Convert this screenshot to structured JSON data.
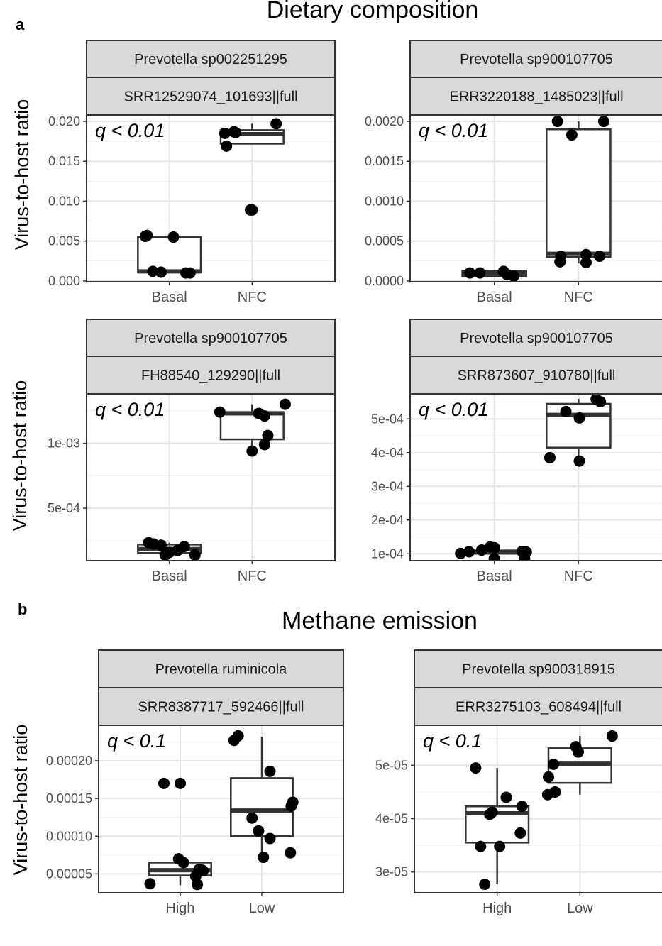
{
  "figure": {
    "section_a_letter": "a",
    "section_a_title": "Dietary composition",
    "section_b_letter": "b",
    "section_b_title": "Methane emission",
    "y_label": "Virus-to-host ratio"
  },
  "chart_data": [
    {
      "type": "box",
      "id": "p1",
      "strip1": "Prevotella sp002251295",
      "strip2": "SRR12529074_101693||full",
      "annotation": "q < 0.01",
      "categories": [
        "Basal",
        "NFC"
      ],
      "ylim": [
        -0.0001,
        0.0208
      ],
      "yticks": [
        0.0,
        0.005,
        0.01,
        0.015,
        0.02
      ],
      "yticklabels": [
        "0.000",
        "0.005",
        "0.010",
        "0.015",
        "0.020"
      ],
      "grid": true,
      "boxes": [
        {
          "q1": 0.0011,
          "median": 0.0012,
          "q3": 0.0055,
          "whisker_low": 0.001,
          "whisker_high": 0.0057
        },
        {
          "q1": 0.0172,
          "median": 0.0184,
          "q3": 0.0189,
          "whisker_low": 0.0172,
          "whisker_high": 0.0197
        }
      ],
      "points": [
        {
          "group": 0,
          "dx": -0.29,
          "y": 0.0056
        },
        {
          "group": 0,
          "dx": -0.27,
          "y": 0.0057
        },
        {
          "group": 0,
          "dx": -0.2,
          "y": 0.0012
        },
        {
          "group": 0,
          "dx": -0.1,
          "y": 0.0011
        },
        {
          "group": 0,
          "dx": 0.05,
          "y": 0.0055
        },
        {
          "group": 0,
          "dx": 0.2,
          "y": 0.001
        },
        {
          "group": 0,
          "dx": 0.25,
          "y": 0.001
        },
        {
          "group": 1,
          "dx": -0.33,
          "y": 0.0185
        },
        {
          "group": 1,
          "dx": -0.31,
          "y": 0.0169
        },
        {
          "group": 1,
          "dx": -0.22,
          "y": 0.0187
        },
        {
          "group": 1,
          "dx": -0.2,
          "y": 0.0186
        },
        {
          "group": 1,
          "dx": -0.02,
          "y": 0.0089
        },
        {
          "group": 1,
          "dx": 0.0,
          "y": 0.0089
        },
        {
          "group": 1,
          "dx": 0.29,
          "y": 0.0197
        }
      ]
    },
    {
      "type": "box",
      "id": "p2",
      "strip1": "Prevotella sp900107705",
      "strip2": "ERR3220188_1485023||full",
      "annotation": "q < 0.01",
      "categories": [
        "Basal",
        "NFC"
      ],
      "ylim": [
        -1e-05,
        0.00208
      ],
      "yticks": [
        0.0,
        0.0005,
        0.001,
        0.0015,
        0.002
      ],
      "yticklabels": [
        "0.0000",
        "0.0005",
        "0.0010",
        "0.0015",
        "0.0020"
      ],
      "grid": true,
      "boxes": [
        {
          "q1": 6e-05,
          "median": 0.0001,
          "q3": 0.00013,
          "whisker_low": 6e-05,
          "whisker_high": 0.00013
        },
        {
          "q1": 0.0003,
          "median": 0.00034,
          "q3": 0.0019,
          "whisker_low": 0.00022,
          "whisker_high": 0.002
        }
      ],
      "points": [
        {
          "group": 0,
          "dx": -0.29,
          "y": 0.0001
        },
        {
          "group": 0,
          "dx": -0.17,
          "y": 0.0001
        },
        {
          "group": 0,
          "dx": 0.11,
          "y": 0.00012
        },
        {
          "group": 0,
          "dx": 0.15,
          "y": 8e-05
        },
        {
          "group": 0,
          "dx": 0.23,
          "y": 6e-05
        },
        {
          "group": 1,
          "dx": -0.25,
          "y": 0.002
        },
        {
          "group": 1,
          "dx": -0.21,
          "y": 0.00031
        },
        {
          "group": 1,
          "dx": -0.22,
          "y": 0.00024
        },
        {
          "group": 1,
          "dx": -0.08,
          "y": 0.00183
        },
        {
          "group": 1,
          "dx": 0.09,
          "y": 0.00033
        },
        {
          "group": 1,
          "dx": 0.09,
          "y": 0.00023
        },
        {
          "group": 1,
          "dx": 0.25,
          "y": 0.00031
        },
        {
          "group": 1,
          "dx": 0.3,
          "y": 0.002
        }
      ]
    },
    {
      "type": "box",
      "id": "p3",
      "strip1": "Prevotella sp900107705",
      "strip2": "FH88540_129290||full",
      "annotation": "q < 0.01",
      "categories": [
        "Basal",
        "NFC"
      ],
      "ylim": [
        9.65e-05,
        0.00138
      ],
      "yticks": [
        0.0005,
        0.001
      ],
      "yticklabels": [
        "5e-04",
        "1e-03"
      ],
      "grid": true,
      "boxes": [
        {
          "q1": 0.000155,
          "median": 0.000185,
          "q3": 0.00022,
          "whisker_low": 0.00013,
          "whisker_high": 0.000235
        },
        {
          "q1": 0.00103,
          "median": 0.00123,
          "q3": 0.00124,
          "whisker_low": 0.00093,
          "whisker_high": 0.0013
        }
      ],
      "points": [
        {
          "group": 0,
          "dx": -0.25,
          "y": 0.000235
        },
        {
          "group": 0,
          "dx": -0.19,
          "y": 0.000225
        },
        {
          "group": 0,
          "dx": -0.1,
          "y": 0.000215
        },
        {
          "group": 0,
          "dx": -0.05,
          "y": 0.00014
        },
        {
          "group": 0,
          "dx": 0.0,
          "y": 0.00016
        },
        {
          "group": 0,
          "dx": 0.1,
          "y": 0.000175
        },
        {
          "group": 0,
          "dx": 0.18,
          "y": 0.000205
        },
        {
          "group": 0,
          "dx": 0.31,
          "y": 0.00014
        },
        {
          "group": 1,
          "dx": -0.39,
          "y": 0.00124
        },
        {
          "group": 1,
          "dx": 0.0,
          "y": 0.00094
        },
        {
          "group": 1,
          "dx": 0.08,
          "y": 0.00123
        },
        {
          "group": 1,
          "dx": 0.15,
          "y": 0.00121
        },
        {
          "group": 1,
          "dx": 0.15,
          "y": 0.00099
        },
        {
          "group": 1,
          "dx": 0.19,
          "y": 0.00106
        },
        {
          "group": 1,
          "dx": 0.4,
          "y": 0.0013
        }
      ]
    },
    {
      "type": "box",
      "id": "p4",
      "strip1": "Prevotella sp900107705",
      "strip2": "SRR873607_910780||full",
      "annotation": "q < 0.01",
      "categories": [
        "Basal",
        "NFC"
      ],
      "ylim": [
        7.95e-05,
        0.0005744
      ],
      "yticks": [
        0.0001,
        0.0002,
        0.0003,
        0.0004,
        0.0005
      ],
      "yticklabels": [
        "1e-04",
        "2e-04",
        "3e-04",
        "4e-04",
        "5e-04"
      ],
      "grid": true,
      "boxes": [
        {
          "q1": 0.0001,
          "median": 0.000106,
          "q3": 0.000109,
          "whisker_low": 9.55e-05,
          "whisker_high": 0.000115
        },
        {
          "q1": 0.000415,
          "median": 0.000512,
          "q3": 0.000545,
          "whisker_low": 0.000375,
          "whisker_high": 0.00056
        }
      ],
      "points": [
        {
          "group": 0,
          "dx": -0.4,
          "y": 0.000101
        },
        {
          "group": 0,
          "dx": -0.3,
          "y": 0.000106
        },
        {
          "group": 0,
          "dx": -0.15,
          "y": 0.000111
        },
        {
          "group": 0,
          "dx": -0.05,
          "y": 0.00012
        },
        {
          "group": 0,
          "dx": 0.0,
          "y": 8.5e-05
        },
        {
          "group": 0,
          "dx": 0.0,
          "y": 0.000118
        },
        {
          "group": 0,
          "dx": 0.33,
          "y": 0.000107
        },
        {
          "group": 0,
          "dx": 0.36,
          "y": 8.5e-05
        },
        {
          "group": 0,
          "dx": 0.38,
          "y": 0.000105
        },
        {
          "group": 1,
          "dx": -0.34,
          "y": 0.000385
        },
        {
          "group": 1,
          "dx": -0.15,
          "y": 0.000522
        },
        {
          "group": 1,
          "dx": 0.01,
          "y": 0.000375
        },
        {
          "group": 1,
          "dx": 0.01,
          "y": 0.000503
        },
        {
          "group": 1,
          "dx": 0.21,
          "y": 0.000559
        },
        {
          "group": 1,
          "dx": 0.26,
          "y": 0.000551
        }
      ]
    },
    {
      "type": "box",
      "id": "p5",
      "strip1": "Prevotella ruminicola",
      "strip2": "SRR8387717_592466||full",
      "annotation": "q < 0.1",
      "categories": [
        "High",
        "Low"
      ],
      "ylim": [
        2.5e-05,
        0.000247
      ],
      "yticks": [
        5e-05,
        0.0001,
        0.00015,
        0.0002
      ],
      "yticklabels": [
        "0.00005",
        "0.00010",
        "0.00015",
        "0.00020"
      ],
      "grid": true,
      "boxes": [
        {
          "q1": 4.8e-05,
          "median": 5.5e-05,
          "q3": 6.5e-05,
          "whisker_low": 3.5e-05,
          "whisker_high": 7.2e-05
        },
        {
          "q1": 0.0001,
          "median": 0.000134,
          "q3": 0.000177,
          "whisker_low": 7.2e-05,
          "whisker_high": 0.000232
        }
      ],
      "points": [
        {
          "group": 0,
          "dx": -0.37,
          "y": 3.7e-05
        },
        {
          "group": 0,
          "dx": -0.2,
          "y": 0.00017
        },
        {
          "group": 0,
          "dx": 0.0,
          "y": 0.00017
        },
        {
          "group": 0,
          "dx": -0.02,
          "y": 7e-05
        },
        {
          "group": 0,
          "dx": 0.04,
          "y": 6.5e-05
        },
        {
          "group": 0,
          "dx": 0.19,
          "y": 4.7e-05
        },
        {
          "group": 0,
          "dx": 0.21,
          "y": 3.6e-05
        },
        {
          "group": 0,
          "dx": 0.23,
          "y": 5.6e-05
        },
        {
          "group": 0,
          "dx": 0.27,
          "y": 5.5e-05
        },
        {
          "group": 0,
          "dx": 0.28,
          "y": 5.4e-05
        },
        {
          "group": 1,
          "dx": -0.34,
          "y": 0.000227
        },
        {
          "group": 1,
          "dx": -0.29,
          "y": 0.000233
        },
        {
          "group": 1,
          "dx": -0.12,
          "y": 0.000124
        },
        {
          "group": 1,
          "dx": -0.04,
          "y": 0.000107
        },
        {
          "group": 1,
          "dx": 0.02,
          "y": 7.2e-05
        },
        {
          "group": 1,
          "dx": 0.1,
          "y": 0.000186
        },
        {
          "group": 1,
          "dx": 0.1,
          "y": 9.7e-05
        },
        {
          "group": 1,
          "dx": 0.35,
          "y": 7.8e-05
        },
        {
          "group": 1,
          "dx": 0.36,
          "y": 0.00014
        },
        {
          "group": 1,
          "dx": 0.38,
          "y": 0.000145
        }
      ]
    },
    {
      "type": "box",
      "id": "p6",
      "strip1": "Prevotella sp900318915",
      "strip2": "ERR3275103_608494||full",
      "annotation": "q < 0.1",
      "categories": [
        "High",
        "Low"
      ],
      "ylim": [
        2.61e-05,
        5.75e-05
      ],
      "yticks": [
        3e-05,
        4e-05,
        5e-05
      ],
      "yticklabels": [
        "3e-05",
        "4e-05",
        "5e-05"
      ],
      "grid": true,
      "boxes": [
        {
          "q1": 3.55e-05,
          "median": 4.1e-05,
          "q3": 4.23e-05,
          "whisker_low": 2.77e-05,
          "whisker_high": 4.95e-05
        },
        {
          "q1": 4.67e-05,
          "median": 5.03e-05,
          "q3": 5.32e-05,
          "whisker_low": 4.45e-05,
          "whisker_high": 5.55e-05
        }
      ],
      "points": [
        {
          "group": 0,
          "dx": -0.26,
          "y": 4.95e-05
        },
        {
          "group": 0,
          "dx": -0.2,
          "y": 3.48e-05
        },
        {
          "group": 0,
          "dx": -0.15,
          "y": 2.77e-05
        },
        {
          "group": 0,
          "dx": -0.09,
          "y": 4.08e-05
        },
        {
          "group": 0,
          "dx": -0.06,
          "y": 4.12e-05
        },
        {
          "group": 0,
          "dx": 0.03,
          "y": 3.48e-05
        },
        {
          "group": 0,
          "dx": 0.11,
          "y": 4.4e-05
        },
        {
          "group": 0,
          "dx": 0.28,
          "y": 3.73e-05
        },
        {
          "group": 0,
          "dx": 0.3,
          "y": 4.23e-05
        },
        {
          "group": 1,
          "dx": -0.39,
          "y": 4.45e-05
        },
        {
          "group": 1,
          "dx": -0.38,
          "y": 4.78e-05
        },
        {
          "group": 1,
          "dx": -0.32,
          "y": 5.02e-05
        },
        {
          "group": 1,
          "dx": -0.3,
          "y": 4.5e-05
        },
        {
          "group": 1,
          "dx": -0.05,
          "y": 5.35e-05
        },
        {
          "group": 1,
          "dx": -0.02,
          "y": 5.25e-05
        },
        {
          "group": 1,
          "dx": 0.39,
          "y": 5.55e-05
        }
      ]
    }
  ]
}
